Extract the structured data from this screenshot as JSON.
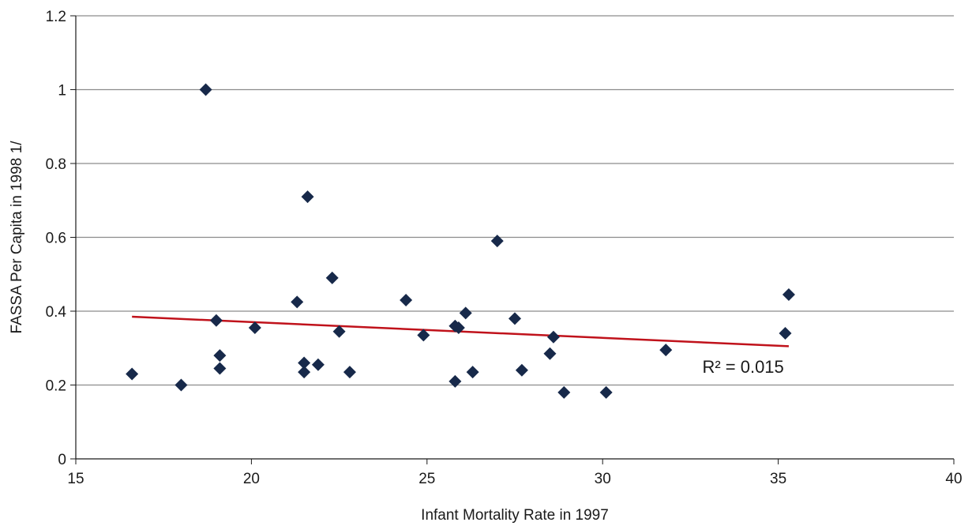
{
  "chart_data": {
    "type": "scatter",
    "title": "",
    "xlabel": "Infant Mortality Rate in 1997",
    "ylabel": "FASSA Per Capita in 1998   1/",
    "xlim": [
      15,
      40
    ],
    "ylim": [
      0,
      1.2
    ],
    "xticks": [
      "15",
      "20",
      "25",
      "30",
      "35",
      "40"
    ],
    "yticks": [
      "0",
      "0.2",
      "0.4",
      "0.6",
      "0.8",
      "1",
      "1.2"
    ],
    "grid": "horizontal",
    "marker_color": "#17294a",
    "trendline_color": "#c0121b",
    "points": [
      {
        "x": 16.6,
        "y": 0.23
      },
      {
        "x": 18.0,
        "y": 0.2
      },
      {
        "x": 18.7,
        "y": 1.0
      },
      {
        "x": 19.0,
        "y": 0.375
      },
      {
        "x": 19.1,
        "y": 0.28
      },
      {
        "x": 19.1,
        "y": 0.245
      },
      {
        "x": 20.1,
        "y": 0.355
      },
      {
        "x": 21.3,
        "y": 0.425
      },
      {
        "x": 21.5,
        "y": 0.26
      },
      {
        "x": 21.5,
        "y": 0.235
      },
      {
        "x": 21.6,
        "y": 0.71
      },
      {
        "x": 21.9,
        "y": 0.255
      },
      {
        "x": 22.3,
        "y": 0.49
      },
      {
        "x": 22.5,
        "y": 0.345
      },
      {
        "x": 22.8,
        "y": 0.235
      },
      {
        "x": 24.4,
        "y": 0.43
      },
      {
        "x": 24.9,
        "y": 0.335
      },
      {
        "x": 25.8,
        "y": 0.36
      },
      {
        "x": 25.8,
        "y": 0.21
      },
      {
        "x": 25.9,
        "y": 0.355
      },
      {
        "x": 26.1,
        "y": 0.395
      },
      {
        "x": 26.3,
        "y": 0.235
      },
      {
        "x": 27.0,
        "y": 0.59
      },
      {
        "x": 27.5,
        "y": 0.38
      },
      {
        "x": 27.7,
        "y": 0.24
      },
      {
        "x": 28.5,
        "y": 0.285
      },
      {
        "x": 28.6,
        "y": 0.33
      },
      {
        "x": 28.9,
        "y": 0.18
      },
      {
        "x": 30.1,
        "y": 0.18
      },
      {
        "x": 31.8,
        "y": 0.295
      },
      {
        "x": 35.2,
        "y": 0.34
      },
      {
        "x": 35.3,
        "y": 0.445
      }
    ],
    "trendline": {
      "x1": 16.6,
      "y1": 0.385,
      "x2": 35.3,
      "y2": 0.305
    },
    "annotation": {
      "text": "R² = 0.015",
      "x": 34.0,
      "y": 0.25
    }
  }
}
